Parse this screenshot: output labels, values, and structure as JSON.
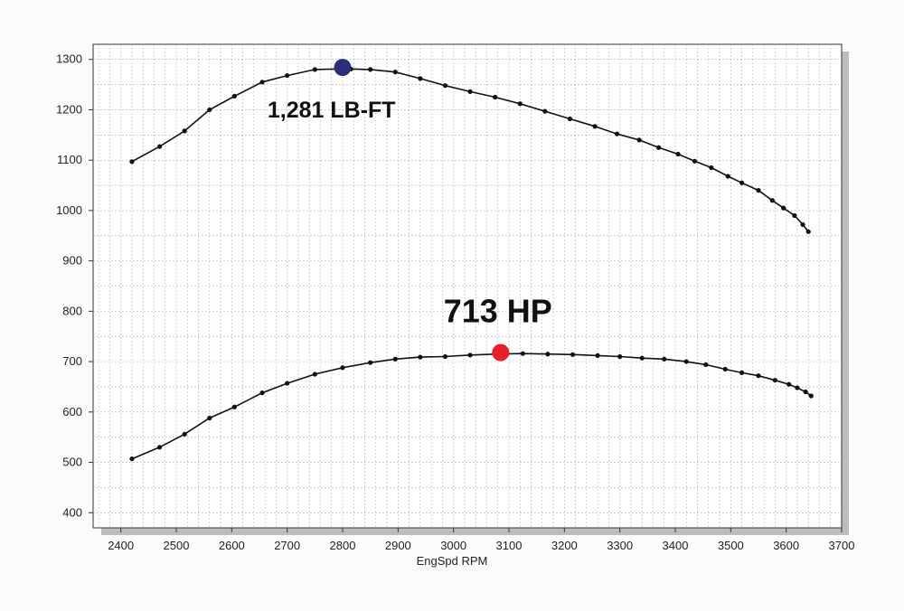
{
  "chart_data": {
    "type": "line",
    "title": "",
    "xlabel": "EngSpd  RPM",
    "ylabel": "",
    "xlim": [
      2350,
      3700
    ],
    "ylim": [
      370,
      1330
    ],
    "x_ticks": [
      2400,
      2500,
      2600,
      2700,
      2800,
      2900,
      3000,
      3100,
      3200,
      3300,
      3400,
      3500,
      3600,
      3700
    ],
    "y_ticks": [
      400,
      500,
      600,
      700,
      800,
      900,
      1000,
      1100,
      1200,
      1300
    ],
    "grid": true,
    "legend": "none",
    "series": [
      {
        "color": "#111111",
        "x": [
          2420,
          2470,
          2515,
          2560,
          2605,
          2655,
          2700,
          2750,
          2790,
          2815,
          2850,
          2895,
          2940,
          2985,
          3030,
          3075,
          3120,
          3165,
          3210,
          3255,
          3295,
          3335,
          3370,
          3405,
          3435,
          3465,
          3495,
          3520,
          3550,
          3575,
          3595,
          3615,
          3630,
          3640
        ],
        "values": [
          1097,
          1127,
          1158,
          1200,
          1227,
          1255,
          1268,
          1280,
          1281,
          1281,
          1280,
          1275,
          1262,
          1248,
          1236,
          1225,
          1212,
          1197,
          1182,
          1167,
          1152,
          1140,
          1125,
          1112,
          1098,
          1085,
          1068,
          1055,
          1040,
          1020,
          1005,
          990,
          972,
          958
        ]
      },
      {
        "color": "#111111",
        "x": [
          2420,
          2470,
          2515,
          2560,
          2605,
          2655,
          2700,
          2750,
          2800,
          2850,
          2895,
          2940,
          2985,
          3030,
          3080,
          3125,
          3170,
          3215,
          3260,
          3300,
          3340,
          3380,
          3420,
          3455,
          3490,
          3520,
          3550,
          3580,
          3605,
          3620,
          3635,
          3645
        ],
        "values": [
          507,
          530,
          556,
          588,
          610,
          638,
          657,
          675,
          688,
          698,
          705,
          709,
          710,
          713,
          715,
          716,
          715,
          714,
          712,
          710,
          707,
          705,
          700,
          694,
          685,
          678,
          672,
          663,
          655,
          648,
          640,
          632
        ]
      }
    ],
    "markers": [
      {
        "x": 2800,
        "y": 1284,
        "color": "#2b2f7a"
      },
      {
        "x": 3085,
        "y": 718,
        "color": "#e8202a"
      }
    ],
    "annotations": [
      {
        "text": "1,281 LB-FT",
        "x": 2780,
        "y": 1185
      },
      {
        "text": "713 HP",
        "x": 3080,
        "y": 778
      }
    ]
  }
}
